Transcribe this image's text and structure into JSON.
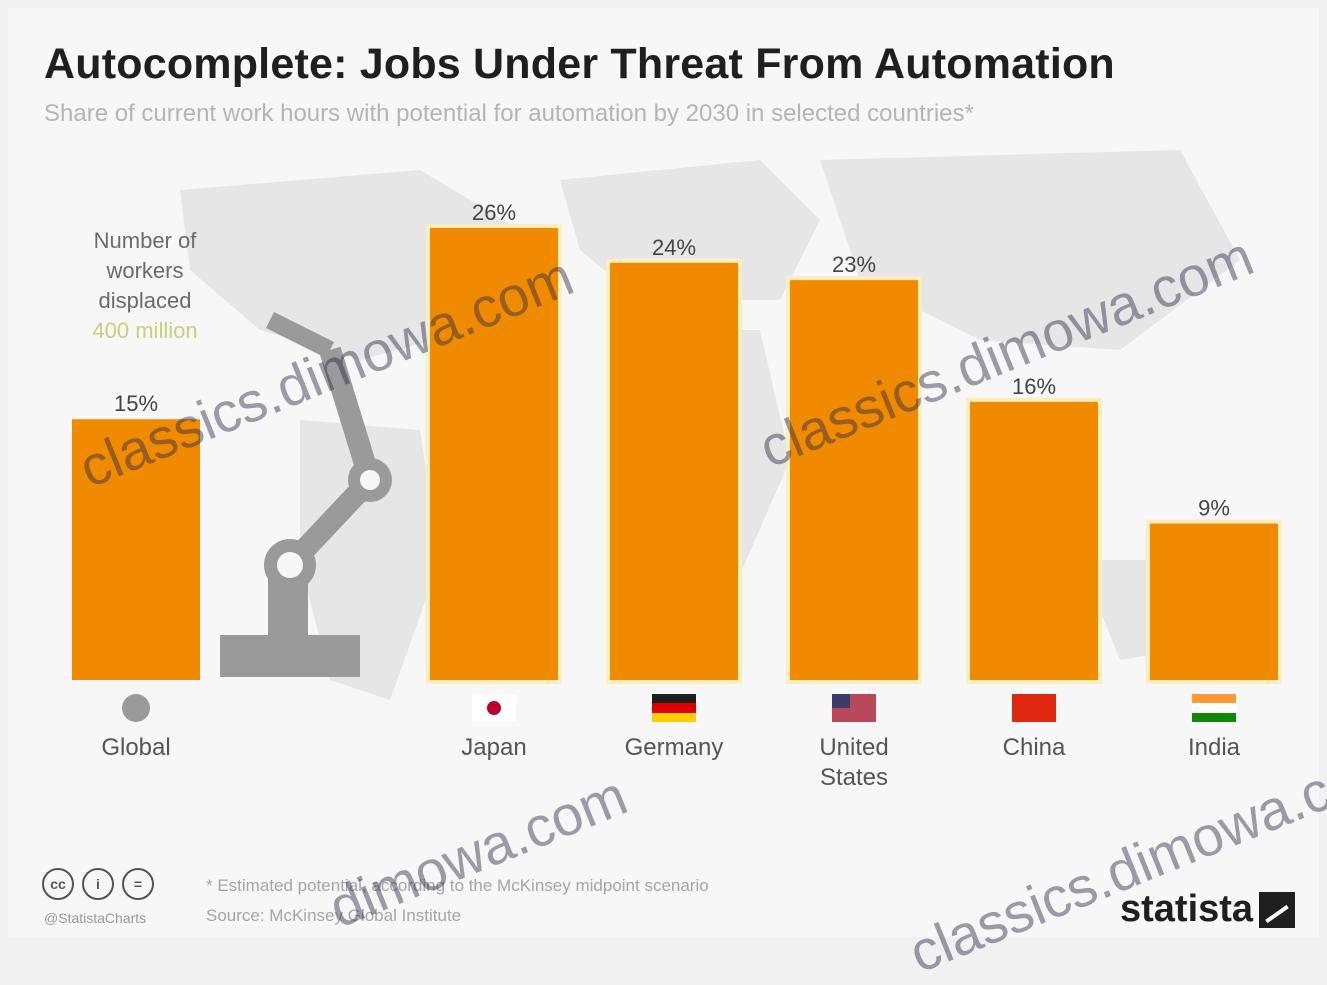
{
  "title": "Autocomplete: Jobs Under Threat From Automation",
  "subtitle": "Share of current work hours with potential for automation by 2030 in selected countries*",
  "note": {
    "line1": "Number of",
    "line2": "workers displaced",
    "value": "400 million"
  },
  "chart_data": {
    "type": "bar",
    "categories": [
      "Global",
      "Japan",
      "Germany",
      "United States",
      "China",
      "India"
    ],
    "values": [
      15,
      26,
      24,
      23,
      16,
      9
    ],
    "data_labels": [
      "15%",
      "26%",
      "24%",
      "23%",
      "16%",
      "9%"
    ],
    "ylim": [
      0,
      26
    ],
    "grid": false,
    "bar_color": "#f08a00"
  },
  "footer": {
    "footnote": "* Estimated potential, according to the McKinsey midpoint scenario",
    "source": "Source: McKinsey Global Institute",
    "handle": "@StatistaCharts",
    "brand": "statista"
  },
  "watermarks": [
    "classics.dimowa.com",
    "classics.dimowa.com",
    "dimowa.com",
    "classics.dimowa.com"
  ],
  "icons": [
    "cc-icon",
    "by-icon",
    "nd-icon",
    "globe-icon",
    "japan-flag-icon",
    "germany-flag-icon",
    "usa-flag-icon",
    "china-flag-icon",
    "india-flag-icon",
    "robot-arm-icon",
    "statista-logo-icon"
  ]
}
